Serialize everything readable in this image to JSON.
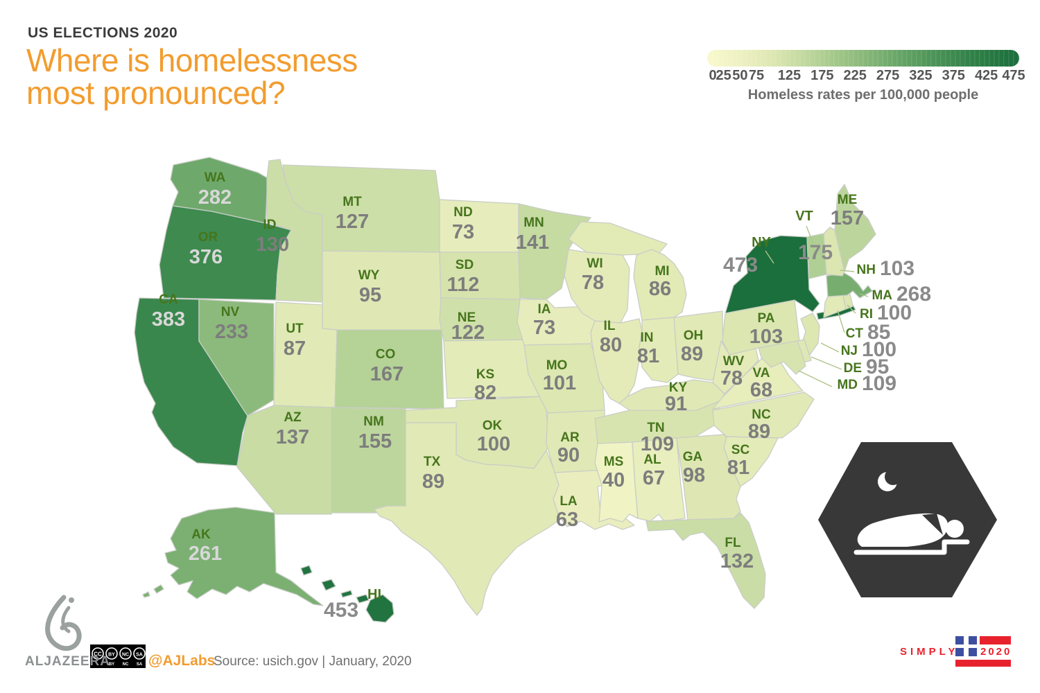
{
  "header": {
    "kicker": "US ELECTIONS 2020",
    "title_line1": "Where is homelessness",
    "title_line2": "most pronounced?",
    "accent_color": "#f29c2f"
  },
  "legend": {
    "ticks": [
      "0",
      "25",
      "50",
      "75",
      "125",
      "175",
      "225",
      "275",
      "325",
      "375",
      "425",
      "475"
    ],
    "max": 475,
    "label": "Homeless rates per 100,000 people"
  },
  "chart_data": {
    "type": "choropleth",
    "title": "Where is homelessness most pronounced?",
    "unit": "Homeless rates per 100,000 people",
    "source": "usich.gov, January 2020",
    "scale_min": 0,
    "scale_max": 475,
    "color_stops": [
      [
        0,
        "#f9f9cd"
      ],
      [
        50,
        "#eef1c2"
      ],
      [
        100,
        "#dde7b2"
      ],
      [
        150,
        "#c0d89f"
      ],
      [
        200,
        "#a0c688"
      ],
      [
        250,
        "#82b476"
      ],
      [
        300,
        "#63a365"
      ],
      [
        350,
        "#4a9256"
      ],
      [
        400,
        "#328249"
      ],
      [
        475,
        "#1a6e3c"
      ]
    ],
    "abbr_color": "#46751c",
    "value_color": "#7d7d7d",
    "value_color_on_dark": "#d8d8d8",
    "states": [
      {
        "abbr": "WA",
        "value": 282
      },
      {
        "abbr": "OR",
        "value": 376
      },
      {
        "abbr": "CA",
        "value": 383
      },
      {
        "abbr": "NV",
        "value": 233
      },
      {
        "abbr": "ID",
        "value": 130
      },
      {
        "abbr": "UT",
        "value": 87
      },
      {
        "abbr": "AZ",
        "value": 137
      },
      {
        "abbr": "MT",
        "value": 127
      },
      {
        "abbr": "WY",
        "value": 95
      },
      {
        "abbr": "CO",
        "value": 167
      },
      {
        "abbr": "NM",
        "value": 155
      },
      {
        "abbr": "ND",
        "value": 73
      },
      {
        "abbr": "SD",
        "value": 112
      },
      {
        "abbr": "NE",
        "value": 122
      },
      {
        "abbr": "KS",
        "value": 82
      },
      {
        "abbr": "OK",
        "value": 100
      },
      {
        "abbr": "TX",
        "value": 89
      },
      {
        "abbr": "MN",
        "value": 141
      },
      {
        "abbr": "IA",
        "value": 73
      },
      {
        "abbr": "MO",
        "value": 101
      },
      {
        "abbr": "AR",
        "value": 90
      },
      {
        "abbr": "LA",
        "value": 63
      },
      {
        "abbr": "WI",
        "value": 78
      },
      {
        "abbr": "IL",
        "value": 80
      },
      {
        "abbr": "MI",
        "value": 86
      },
      {
        "abbr": "IN",
        "value": 81
      },
      {
        "abbr": "OH",
        "value": 89
      },
      {
        "abbr": "KY",
        "value": 91
      },
      {
        "abbr": "TN",
        "value": 109
      },
      {
        "abbr": "MS",
        "value": 40
      },
      {
        "abbr": "AL",
        "value": 67
      },
      {
        "abbr": "GA",
        "value": 98
      },
      {
        "abbr": "SC",
        "value": 81
      },
      {
        "abbr": "NC",
        "value": 89
      },
      {
        "abbr": "VA",
        "value": 68
      },
      {
        "abbr": "WV",
        "value": 78
      },
      {
        "abbr": "FL",
        "value": 132
      },
      {
        "abbr": "PA",
        "value": 103
      },
      {
        "abbr": "NY",
        "value": 473
      },
      {
        "abbr": "NJ",
        "value": 100
      },
      {
        "abbr": "DE",
        "value": 95
      },
      {
        "abbr": "MD",
        "value": 109
      },
      {
        "abbr": "CT",
        "value": 85
      },
      {
        "abbr": "RI",
        "value": 100
      },
      {
        "abbr": "MA",
        "value": 268
      },
      {
        "abbr": "VT",
        "value": 175
      },
      {
        "abbr": "NH",
        "value": 103
      },
      {
        "abbr": "ME",
        "value": 157
      },
      {
        "abbr": "AK",
        "value": 261
      },
      {
        "abbr": "HI",
        "value": 453
      }
    ]
  },
  "footer": {
    "brand": "ALJAZEERA",
    "license_parts": [
      "CC",
      "BY",
      "NC",
      "SA"
    ],
    "handle": "@AJLabs",
    "source": "Source: usich.gov | January, 2020"
  },
  "badge": {
    "word": "SIMPLY",
    "year": "2020"
  }
}
